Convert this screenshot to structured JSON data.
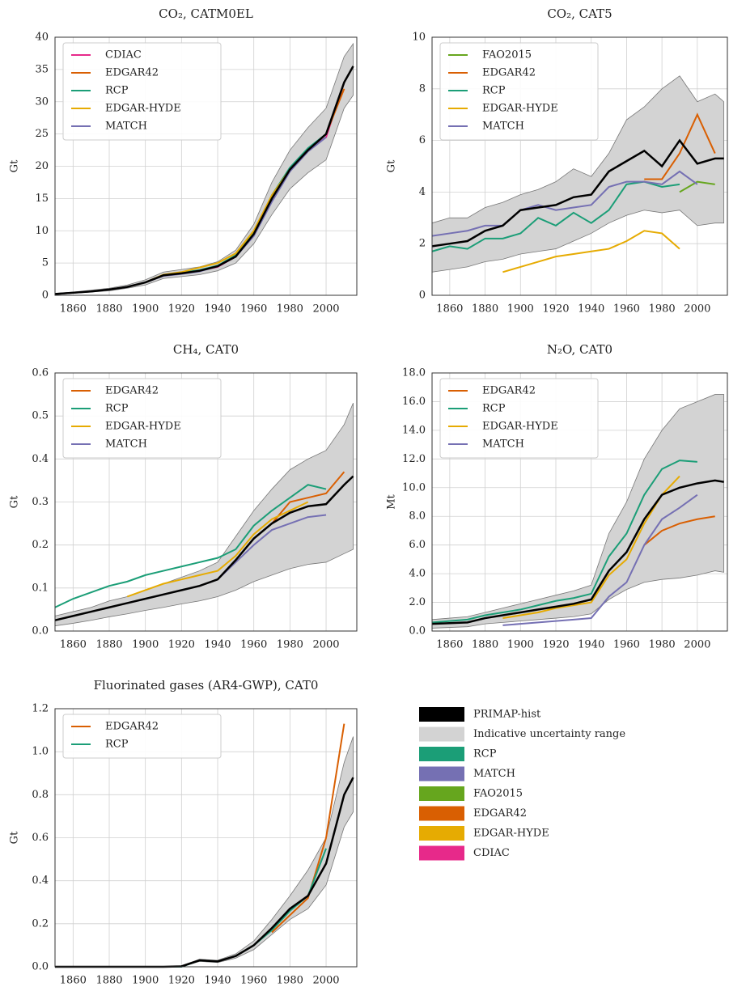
{
  "chart_data": [
    {
      "type": "line",
      "title": "CO₂, CATM0EL",
      "ylabel": "Gt",
      "x": [
        1850,
        1860,
        1870,
        1880,
        1890,
        1900,
        1910,
        1920,
        1930,
        1940,
        1950,
        1960,
        1970,
        1980,
        1990,
        2000,
        2010,
        2015
      ],
      "xlim": [
        1850,
        2017
      ],
      "xticks": [
        1860,
        1880,
        1900,
        1920,
        1940,
        1960,
        1980,
        2000
      ],
      "ylim": [
        0,
        40
      ],
      "yticks": [
        0,
        5,
        10,
        15,
        20,
        25,
        30,
        35,
        40
      ],
      "grid": true,
      "primap": [
        0.2,
        0.4,
        0.6,
        0.9,
        1.3,
        2.0,
        3.1,
        3.4,
        3.8,
        4.5,
        6.0,
        9.5,
        15,
        19.5,
        22.5,
        25,
        33,
        35.5
      ],
      "band_upper": [
        0.3,
        0.5,
        0.8,
        1.1,
        1.6,
        2.4,
        3.6,
        4.0,
        4.4,
        5.2,
        7.0,
        11,
        17.5,
        22.5,
        26,
        29,
        37,
        39
      ],
      "band_lower": [
        0.1,
        0.3,
        0.5,
        0.7,
        1.1,
        1.6,
        2.6,
        2.9,
        3.2,
        3.8,
        5.0,
        8,
        12.5,
        16.5,
        19,
        21,
        29,
        31
      ],
      "series": [
        {
          "name": "CDIAC",
          "color": "#e7298a",
          "values": [
            0.2,
            0.4,
            0.6,
            0.9,
            1.3,
            2.0,
            3.1,
            3.4,
            3.8,
            4.4,
            6.0,
            9.4,
            15,
            19.5,
            22.5,
            24.5,
            33,
            null
          ]
        },
        {
          "name": "EDGAR42",
          "color": "#d95f02",
          "values": [
            null,
            null,
            null,
            null,
            null,
            null,
            null,
            null,
            null,
            null,
            null,
            null,
            15.5,
            19.5,
            22.5,
            25,
            32,
            null
          ]
        },
        {
          "name": "RCP",
          "color": "#1b9e77",
          "values": [
            0.2,
            0.4,
            0.6,
            0.9,
            1.3,
            2.0,
            3.1,
            3.5,
            3.9,
            4.6,
            6.2,
            9.6,
            15.5,
            19.8,
            22.8,
            25,
            null,
            null
          ]
        },
        {
          "name": "EDGAR-HYDE",
          "color": "#e6ab02",
          "values": [
            null,
            null,
            null,
            null,
            1.3,
            2.0,
            3.2,
            3.6,
            4.3,
            5.0,
            6.5,
            10,
            15.5,
            19.5,
            22.5,
            null,
            null,
            null
          ]
        },
        {
          "name": "MATCH",
          "color": "#7570b3",
          "values": [
            0.2,
            0.4,
            0.6,
            0.9,
            1.3,
            2.0,
            3.0,
            3.3,
            3.7,
            4.5,
            6.0,
            9.2,
            14.5,
            19.2,
            22.3,
            24.5,
            null,
            null
          ]
        }
      ]
    },
    {
      "type": "line",
      "title": "CO₂, CAT5",
      "ylabel": "Gt",
      "x": [
        1850,
        1860,
        1870,
        1880,
        1890,
        1900,
        1910,
        1920,
        1930,
        1940,
        1950,
        1960,
        1970,
        1980,
        1990,
        2000,
        2010,
        2015
      ],
      "xlim": [
        1850,
        2017
      ],
      "xticks": [
        1860,
        1880,
        1900,
        1920,
        1940,
        1960,
        1980,
        2000
      ],
      "ylim": [
        0,
        10
      ],
      "yticks": [
        0,
        2,
        4,
        6,
        8,
        10
      ],
      "grid": true,
      "primap": [
        1.9,
        2.0,
        2.1,
        2.5,
        2.7,
        3.3,
        3.4,
        3.5,
        3.8,
        3.9,
        4.8,
        5.2,
        5.6,
        5.0,
        6.0,
        5.1,
        5.3,
        5.3
      ],
      "band_upper": [
        2.8,
        3.0,
        3.0,
        3.4,
        3.6,
        3.9,
        4.1,
        4.4,
        4.9,
        4.6,
        5.5,
        6.8,
        7.3,
        8.0,
        8.5,
        7.5,
        7.8,
        7.5
      ],
      "band_lower": [
        0.9,
        1.0,
        1.1,
        1.3,
        1.4,
        1.6,
        1.7,
        1.8,
        2.1,
        2.4,
        2.8,
        3.1,
        3.3,
        3.2,
        3.3,
        2.7,
        2.8,
        2.8
      ],
      "series": [
        {
          "name": "FAO2015",
          "color": "#66a61e",
          "values": [
            null,
            null,
            null,
            null,
            null,
            null,
            null,
            null,
            null,
            null,
            null,
            null,
            null,
            null,
            4.0,
            4.4,
            4.3,
            null
          ]
        },
        {
          "name": "EDGAR42",
          "color": "#d95f02",
          "values": [
            null,
            null,
            null,
            null,
            null,
            null,
            null,
            null,
            null,
            null,
            null,
            null,
            4.5,
            4.5,
            5.5,
            7.0,
            5.5,
            null
          ]
        },
        {
          "name": "RCP",
          "color": "#1b9e77",
          "values": [
            1.7,
            1.9,
            1.8,
            2.2,
            2.2,
            2.4,
            3.0,
            2.7,
            3.2,
            2.8,
            3.3,
            4.3,
            4.4,
            4.2,
            4.3,
            null,
            null,
            null
          ]
        },
        {
          "name": "EDGAR-HYDE",
          "color": "#e6ab02",
          "values": [
            null,
            null,
            null,
            null,
            0.9,
            1.1,
            1.3,
            1.5,
            1.6,
            1.7,
            1.8,
            2.1,
            2.5,
            2.4,
            1.8,
            null,
            null,
            null
          ]
        },
        {
          "name": "MATCH",
          "color": "#7570b3",
          "values": [
            2.3,
            2.4,
            2.5,
            2.7,
            2.7,
            3.3,
            3.5,
            3.3,
            3.4,
            3.5,
            4.2,
            4.4,
            4.4,
            4.3,
            4.8,
            4.3,
            null,
            null
          ]
        }
      ]
    },
    {
      "type": "line",
      "title": "CH₄, CAT0",
      "ylabel": "Gt",
      "x": [
        1850,
        1860,
        1870,
        1880,
        1890,
        1900,
        1910,
        1920,
        1930,
        1940,
        1950,
        1960,
        1970,
        1980,
        1990,
        2000,
        2010,
        2015
      ],
      "xlim": [
        1850,
        2017
      ],
      "xticks": [
        1860,
        1880,
        1900,
        1920,
        1940,
        1960,
        1980,
        2000
      ],
      "ylim": [
        0,
        0.6
      ],
      "yticks": [
        {
          "value": 0,
          "label": "0.0"
        },
        0.1,
        0.2,
        0.3,
        0.4,
        0.5,
        0.6
      ],
      "grid": true,
      "primap": [
        0.025,
        0.035,
        0.045,
        0.055,
        0.065,
        0.075,
        0.085,
        0.095,
        0.105,
        0.12,
        0.165,
        0.215,
        0.25,
        0.275,
        0.29,
        0.295,
        0.34,
        0.36
      ],
      "band_upper": [
        0.035,
        0.045,
        0.055,
        0.07,
        0.08,
        0.095,
        0.11,
        0.125,
        0.14,
        0.16,
        0.22,
        0.28,
        0.33,
        0.375,
        0.4,
        0.42,
        0.48,
        0.53
      ],
      "band_lower": [
        0.012,
        0.018,
        0.025,
        0.033,
        0.04,
        0.048,
        0.055,
        0.063,
        0.07,
        0.08,
        0.095,
        0.115,
        0.13,
        0.145,
        0.155,
        0.16,
        0.18,
        0.19
      ],
      "series": [
        {
          "name": "EDGAR42",
          "color": "#d95f02",
          "values": [
            null,
            null,
            null,
            null,
            null,
            null,
            null,
            null,
            null,
            null,
            null,
            null,
            0.25,
            0.3,
            0.31,
            0.32,
            0.37,
            null
          ]
        },
        {
          "name": "RCP",
          "color": "#1b9e77",
          "values": [
            0.055,
            0.075,
            0.09,
            0.105,
            0.115,
            0.13,
            0.14,
            0.15,
            0.16,
            0.17,
            0.19,
            0.245,
            0.28,
            0.31,
            0.34,
            0.33,
            null,
            null
          ]
        },
        {
          "name": "EDGAR-HYDE",
          "color": "#e6ab02",
          "values": [
            null,
            null,
            null,
            null,
            0.08,
            0.095,
            0.11,
            0.12,
            0.13,
            0.14,
            0.175,
            0.225,
            0.26,
            0.28,
            0.3,
            null,
            null,
            null
          ]
        },
        {
          "name": "MATCH",
          "color": "#7570b3",
          "values": [
            null,
            null,
            null,
            null,
            0.065,
            0.075,
            0.085,
            0.095,
            0.105,
            0.12,
            0.16,
            0.2,
            0.235,
            0.25,
            0.265,
            0.27,
            null,
            null
          ]
        }
      ]
    },
    {
      "type": "line",
      "title": "N₂O, CAT0",
      "ylabel": "Mt",
      "x": [
        1850,
        1860,
        1870,
        1880,
        1890,
        1900,
        1910,
        1920,
        1930,
        1940,
        1950,
        1960,
        1970,
        1980,
        1990,
        2000,
        2010,
        2015
      ],
      "xlim": [
        1850,
        2017
      ],
      "xticks": [
        1860,
        1880,
        1900,
        1920,
        1940,
        1960,
        1980,
        2000
      ],
      "ylim": [
        0,
        18
      ],
      "yticks": [
        {
          "value": 0,
          "label": "0.0"
        },
        {
          "value": 2,
          "label": "2.0"
        },
        {
          "value": 4,
          "label": "4.0"
        },
        {
          "value": 6,
          "label": "6.0"
        },
        {
          "value": 8,
          "label": "8.0"
        },
        {
          "value": 10,
          "label": "10.0"
        },
        {
          "value": 12,
          "label": "12.0"
        },
        {
          "value": 14,
          "label": "14.0"
        },
        {
          "value": 16,
          "label": "16.0"
        },
        {
          "value": 18,
          "label": "18.0"
        }
      ],
      "grid": true,
      "primap": [
        0.5,
        0.55,
        0.6,
        0.9,
        1.1,
        1.3,
        1.5,
        1.7,
        1.9,
        2.2,
        4.2,
        5.5,
        7.8,
        9.5,
        10,
        10.3,
        10.5,
        10.4
      ],
      "band_upper": [
        0.8,
        0.9,
        1.0,
        1.3,
        1.6,
        1.9,
        2.2,
        2.5,
        2.8,
        3.2,
        6.8,
        9,
        12,
        14,
        15.5,
        16,
        16.5,
        16.5
      ],
      "band_lower": [
        0.2,
        0.25,
        0.3,
        0.5,
        0.6,
        0.7,
        0.8,
        0.9,
        1.0,
        1.2,
        2.2,
        2.9,
        3.4,
        3.6,
        3.7,
        3.9,
        4.2,
        4.1
      ],
      "series": [
        {
          "name": "EDGAR42",
          "color": "#d95f02",
          "values": [
            null,
            null,
            null,
            null,
            null,
            null,
            null,
            null,
            null,
            null,
            null,
            null,
            6,
            7,
            7.5,
            7.8,
            8,
            null
          ]
        },
        {
          "name": "RCP",
          "color": "#1b9e77",
          "values": [
            0.6,
            0.7,
            0.8,
            1.1,
            1.3,
            1.5,
            1.8,
            2.1,
            2.3,
            2.6,
            5.2,
            6.8,
            9.5,
            11.3,
            11.9,
            11.8,
            null,
            null
          ]
        },
        {
          "name": "EDGAR-HYDE",
          "color": "#e6ab02",
          "values": [
            null,
            null,
            null,
            null,
            0.9,
            1.1,
            1.3,
            1.6,
            1.8,
            2.0,
            3.9,
            5.0,
            7.5,
            9.5,
            10.8,
            null,
            null,
            null
          ]
        },
        {
          "name": "MATCH",
          "color": "#7570b3",
          "values": [
            null,
            null,
            null,
            null,
            0.4,
            0.5,
            0.6,
            0.7,
            0.8,
            0.9,
            2.4,
            3.4,
            6,
            7.8,
            8.6,
            9.5,
            null,
            null
          ]
        }
      ]
    },
    {
      "type": "line",
      "title": "Fluorinated gases (AR4-GWP), CAT0",
      "ylabel": "Gt",
      "x": [
        1850,
        1860,
        1870,
        1880,
        1890,
        1900,
        1910,
        1920,
        1930,
        1940,
        1950,
        1960,
        1970,
        1980,
        1990,
        2000,
        2010,
        2015
      ],
      "xlim": [
        1850,
        2017
      ],
      "xticks": [
        1860,
        1880,
        1900,
        1920,
        1940,
        1960,
        1980,
        2000
      ],
      "ylim": [
        0,
        1.2
      ],
      "yticks": [
        {
          "value": 0,
          "label": "0.0"
        },
        0.2,
        0.4,
        0.6,
        0.8,
        {
          "value": 1,
          "label": "1.0"
        },
        1.2
      ],
      "grid": true,
      "primap": [
        0,
        0,
        0,
        0,
        0,
        0,
        0,
        0.002,
        0.03,
        0.025,
        0.05,
        0.1,
        0.18,
        0.27,
        0.33,
        0.48,
        0.8,
        0.88
      ],
      "band_upper": [
        0,
        0,
        0,
        0,
        0,
        0,
        0,
        0.005,
        0.035,
        0.03,
        0.06,
        0.12,
        0.22,
        0.33,
        0.45,
        0.6,
        0.95,
        1.07
      ],
      "band_lower": [
        0,
        0,
        0,
        0,
        0,
        0,
        0,
        0,
        0.025,
        0.02,
        0.04,
        0.08,
        0.15,
        0.22,
        0.27,
        0.38,
        0.65,
        0.72
      ],
      "series": [
        {
          "name": "EDGAR42",
          "color": "#d95f02",
          "values": [
            null,
            null,
            null,
            null,
            null,
            null,
            null,
            null,
            null,
            null,
            null,
            null,
            0.16,
            0.24,
            0.32,
            0.6,
            1.13,
            null
          ]
        },
        {
          "name": "RCP",
          "color": "#1b9e77",
          "values": [
            0,
            0,
            0,
            0,
            0,
            0,
            0,
            0,
            0.03,
            0.025,
            0.05,
            0.1,
            0.17,
            0.26,
            0.33,
            0.55,
            null,
            null
          ]
        }
      ]
    }
  ],
  "legend": [
    {
      "name": "PRIMAP-hist",
      "color": "#000000"
    },
    {
      "name": "Indicative uncertainty range",
      "color": "#d3d3d3"
    },
    {
      "name": "RCP",
      "color": "#1b9e77"
    },
    {
      "name": "MATCH",
      "color": "#7570b3"
    },
    {
      "name": "FAO2015",
      "color": "#66a61e"
    },
    {
      "name": "EDGAR42",
      "color": "#d95f02"
    },
    {
      "name": "EDGAR-HYDE",
      "color": "#e6ab02"
    },
    {
      "name": "CDIAC",
      "color": "#e7298a"
    }
  ]
}
